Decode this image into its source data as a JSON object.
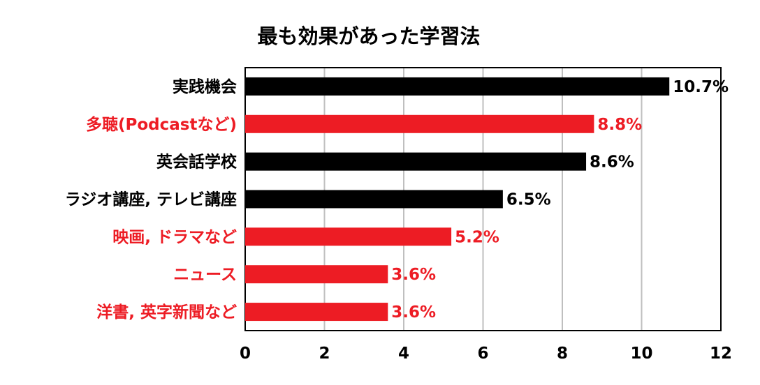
{
  "chart_data": {
    "type": "bar",
    "orientation": "horizontal",
    "title": "最も効果があった学習法",
    "categories": [
      "実践機会",
      "多聴(Podcastなど)",
      "英会話学校",
      "ラジオ講座, テレビ講座",
      "映画, ドラマなど",
      "ニュース",
      "洋書, 英字新聞など"
    ],
    "values": [
      10.7,
      8.8,
      8.6,
      6.5,
      5.2,
      3.6,
      3.6
    ],
    "value_labels": [
      "10.7%",
      "8.8%",
      "8.6%",
      "6.5%",
      "5.2%",
      "3.6%",
      "3.6%"
    ],
    "highlight": [
      false,
      true,
      false,
      false,
      true,
      true,
      true
    ],
    "colors": {
      "normal": "#000000",
      "highlight": "#ed1c24"
    },
    "xlim": [
      0,
      12
    ],
    "xticks": [
      "0",
      "2",
      "4",
      "6",
      "8",
      "10",
      "12"
    ],
    "xlabel": "",
    "ylabel": "",
    "grid": "vertical",
    "legend": "none"
  }
}
